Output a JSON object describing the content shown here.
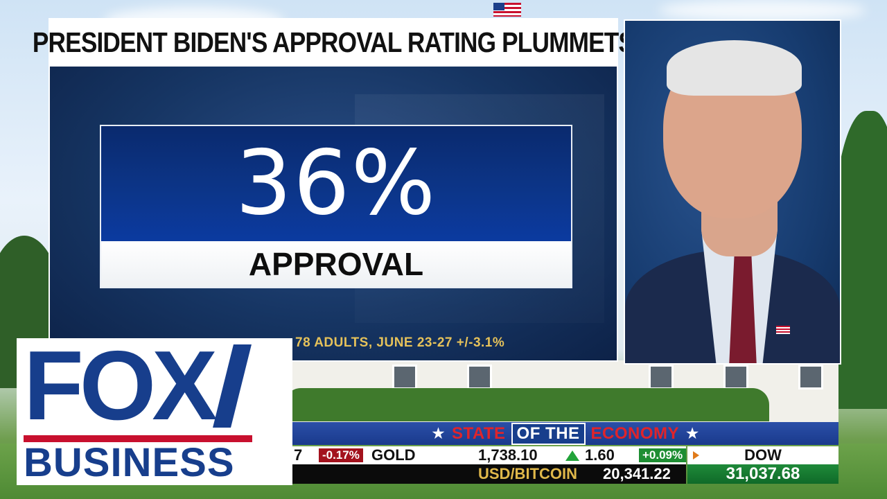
{
  "headline": "PRESIDENT BIDEN'S APPROVAL RATING PLUMMETS",
  "stat": {
    "value": "36%",
    "label": "APPROVAL"
  },
  "poll_note": "78 ADULTS, JUNE 23-27 +/-3.1%",
  "logo": {
    "top": "FOX",
    "bottom": "BUSINESS"
  },
  "ticker": {
    "title_left": "STATE",
    "title_mid": "OF THE",
    "title_right": "ECONOMY",
    "star": "★",
    "row1": {
      "prev_fragment": "7",
      "prev_change_pct": "-0.17%",
      "name": "GOLD",
      "price": "1,738.10",
      "change": "1.60",
      "change_pct": "+0.09%"
    },
    "row2": {
      "name": "USD/BITCOIN",
      "price": "20,341.22"
    },
    "index": {
      "name": "DOW",
      "value": "31,037.68"
    }
  },
  "colors": {
    "fox_blue": "#173e8c",
    "fox_red": "#c8102e",
    "stat_blue": "#0c3588",
    "poll_gold": "#e6c25a",
    "up_green": "#22a33a",
    "down_red": "#a3121d"
  },
  "icons": [
    "us-flag-icon",
    "up-triangle-icon",
    "right-arrow-icon",
    "star-icon"
  ]
}
